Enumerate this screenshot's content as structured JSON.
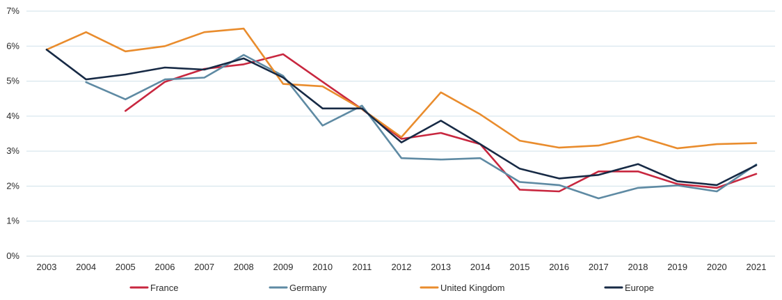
{
  "chart_data": {
    "type": "line",
    "title": "",
    "xlabel": "",
    "ylabel": "",
    "x": [
      2003,
      2004,
      2005,
      2006,
      2007,
      2008,
      2009,
      2010,
      2011,
      2012,
      2013,
      2014,
      2015,
      2016,
      2017,
      2018,
      2019,
      2020,
      2021
    ],
    "x_tick_labels": [
      "2003",
      "2004",
      "2005",
      "2006",
      "2007",
      "2008",
      "2009",
      "2010",
      "2011",
      "2012",
      "2013",
      "2014",
      "2015",
      "2016",
      "2017",
      "2018",
      "2019",
      "2020",
      "2021"
    ],
    "y_ticks": [
      0,
      1,
      2,
      3,
      4,
      5,
      6,
      7
    ],
    "y_tick_labels": [
      "0%",
      "1%",
      "2%",
      "3%",
      "4%",
      "5%",
      "6%",
      "7%"
    ],
    "ylim": [
      0,
      7
    ],
    "grid": true,
    "legend_position": "bottom",
    "series": [
      {
        "name": "France",
        "color": "#c8273f",
        "values": [
          null,
          null,
          4.15,
          4.98,
          5.35,
          5.48,
          5.77,
          4.98,
          4.2,
          3.35,
          3.52,
          3.2,
          1.9,
          1.85,
          2.42,
          2.42,
          2.06,
          1.95,
          2.35
        ]
      },
      {
        "name": "Germany",
        "color": "#5e8aa3",
        "values": [
          null,
          4.97,
          4.48,
          5.05,
          5.1,
          5.75,
          5.15,
          3.73,
          4.3,
          2.8,
          2.76,
          2.8,
          2.12,
          2.03,
          1.65,
          1.95,
          2.02,
          1.85,
          2.62
        ]
      },
      {
        "name": "United Kingdom",
        "color": "#e98c2d",
        "values": [
          5.9,
          6.4,
          5.85,
          6.0,
          6.4,
          6.5,
          4.92,
          4.85,
          4.2,
          3.4,
          4.68,
          4.05,
          3.3,
          3.1,
          3.16,
          3.42,
          3.08,
          3.2,
          3.23
        ]
      },
      {
        "name": "Europe",
        "color": "#172a45",
        "values": [
          5.9,
          5.05,
          5.19,
          5.39,
          5.33,
          5.65,
          5.1,
          4.22,
          4.22,
          3.25,
          3.87,
          3.2,
          2.5,
          2.22,
          2.32,
          2.63,
          2.14,
          2.03,
          2.6
        ]
      }
    ]
  }
}
